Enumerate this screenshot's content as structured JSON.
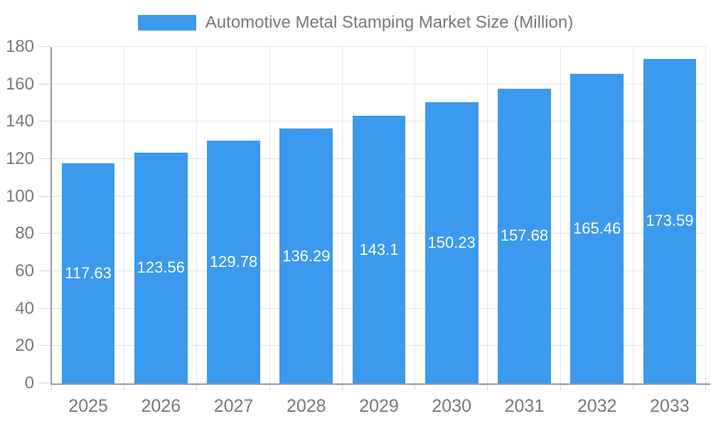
{
  "chart_data": {
    "type": "bar",
    "title": "Automotive Metal Stamping Market Size (Million)",
    "legend": {
      "position": "top",
      "label": "Automotive Metal Stamping Market Size (Million)"
    },
    "categories": [
      "2025",
      "2026",
      "2027",
      "2028",
      "2029",
      "2030",
      "2031",
      "2032",
      "2033"
    ],
    "series": [
      {
        "name": "Automotive Metal Stamping Market Size (Million)",
        "values": [
          117.63,
          123.56,
          129.78,
          136.29,
          143.1,
          150.23,
          157.68,
          165.46,
          173.59
        ]
      }
    ],
    "value_labels": [
      "117.63",
      "123.56",
      "129.78",
      "136.29",
      "143.1",
      "150.23",
      "157.68",
      "165.46",
      "173.59"
    ],
    "xlabel": "",
    "ylabel": "",
    "ylim": [
      0,
      180
    ],
    "yticks": [
      0,
      20,
      40,
      60,
      80,
      100,
      120,
      140,
      160,
      180
    ],
    "grid": true,
    "legend_position": "top"
  },
  "colors": {
    "bar": "#3B99EE",
    "axis": "#9b9b9b",
    "grid": "#e4e4e7",
    "tick": "#d4d4d8",
    "text": "#75787d",
    "value_text": "#ffffff",
    "background": "#ffffff"
  }
}
